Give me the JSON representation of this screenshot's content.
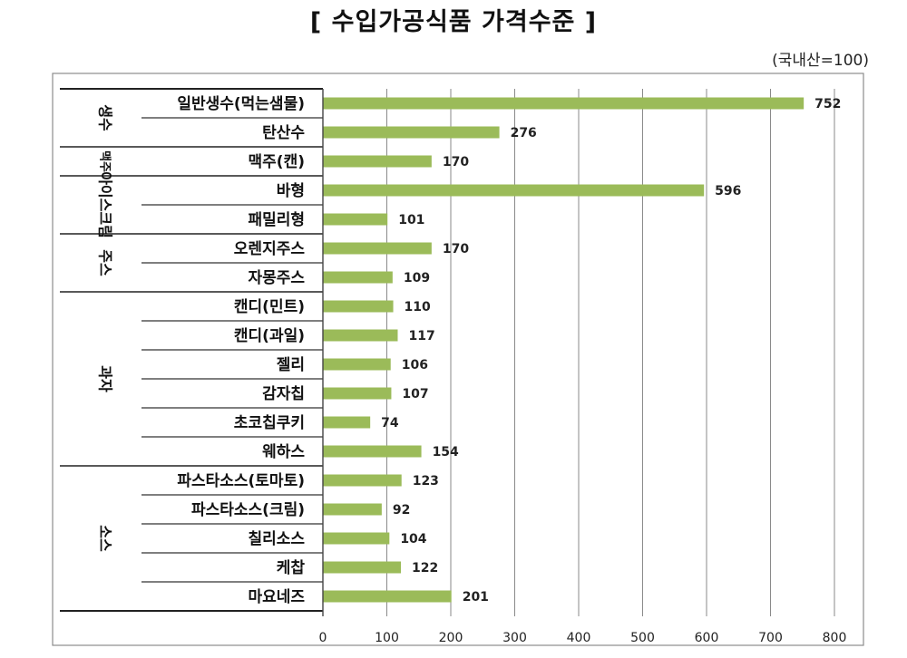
{
  "page": {
    "title": "[ 수입가공식품 가격수준 ]",
    "unit_note": "(국내산=100)"
  },
  "chart_data": {
    "type": "bar",
    "orientation": "horizontal",
    "title": "[ 수입가공식품 가격수준 ]",
    "unit": "(국내산=100)",
    "bar_color": "#9bbb59",
    "xlim": [
      0,
      800
    ],
    "xticks": [
      0,
      100,
      200,
      300,
      400,
      500,
      600,
      700,
      800
    ],
    "grid": true,
    "groups": [
      {
        "name": "생수",
        "items": [
          {
            "label": "일반생수(먹는샘물)",
            "value": 752
          },
          {
            "label": "탄산수",
            "value": 276
          }
        ]
      },
      {
        "name": "맥주",
        "items": [
          {
            "label": "맥주(캔)",
            "value": 170
          }
        ]
      },
      {
        "name": "아이스크림",
        "items": [
          {
            "label": "바형",
            "value": 596
          },
          {
            "label": "패밀리형",
            "value": 101
          }
        ]
      },
      {
        "name": "주스",
        "items": [
          {
            "label": "오렌지주스",
            "value": 170
          },
          {
            "label": "자몽주스",
            "value": 109
          }
        ]
      },
      {
        "name": "과자",
        "items": [
          {
            "label": "캔디(민트)",
            "value": 110
          },
          {
            "label": "캔디(과일)",
            "value": 117
          },
          {
            "label": "젤리",
            "value": 106
          },
          {
            "label": "감자칩",
            "value": 107
          },
          {
            "label": "초코칩쿠키",
            "value": 74
          },
          {
            "label": "웨하스",
            "value": 154
          }
        ]
      },
      {
        "name": "소스",
        "items": [
          {
            "label": "파스타소스(토마토)",
            "value": 123
          },
          {
            "label": "파스타소스(크림)",
            "value": 92
          },
          {
            "label": "칠리소스",
            "value": 104
          },
          {
            "label": "케찹",
            "value": 122
          },
          {
            "label": "마요네즈",
            "value": 201
          }
        ]
      }
    ]
  }
}
